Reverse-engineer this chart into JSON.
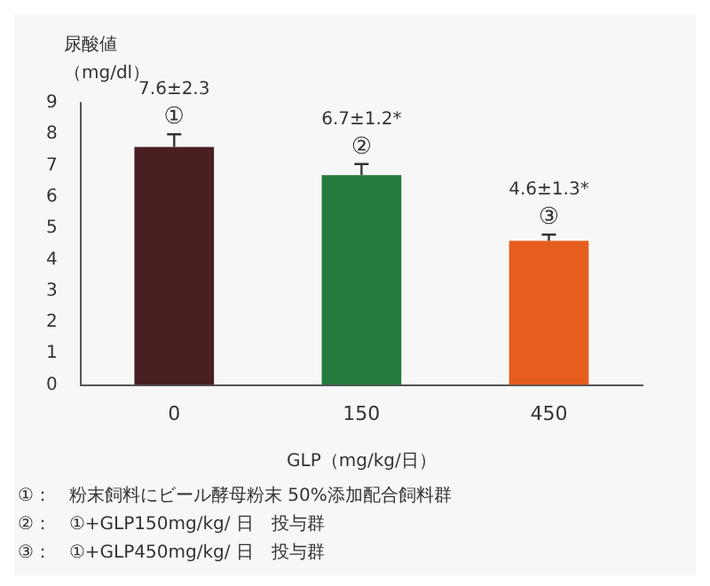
{
  "chart_data": {
    "type": "bar",
    "categories": [
      "0",
      "150",
      "450"
    ],
    "values": [
      7.6,
      6.7,
      4.6
    ],
    "colors": [
      "#4a1f22",
      "#237a3c",
      "#e65e1e"
    ],
    "errors": [
      0.4,
      0.35,
      0.2
    ],
    "value_labels": [
      "7.6±2.3",
      "6.7±1.2*",
      "4.6±1.3*"
    ],
    "ylim": [
      0,
      9
    ],
    "yticks": [
      0,
      1,
      2,
      3,
      4,
      5,
      6,
      7,
      8,
      9
    ],
    "ylabel": "尿酸値（mg/dl）",
    "xlabel": "GLP（mg/kg/日）",
    "grid": false,
    "legend": false,
    "annotations": [
      {
        "text": "①",
        "x": "0",
        "y": 7.6
      },
      {
        "text": "②",
        "x": "150",
        "y": 6.7
      },
      {
        "text": "③",
        "x": "450",
        "y": 4.6
      },
      "①：　粉末飼料にビール酵母粉末 50%添加配合飼料群",
      "②：　①+GLP150mg/kg/ 日　投与群",
      "③：　①+GLP450mg/kg/ 日　投与群"
    ]
  }
}
